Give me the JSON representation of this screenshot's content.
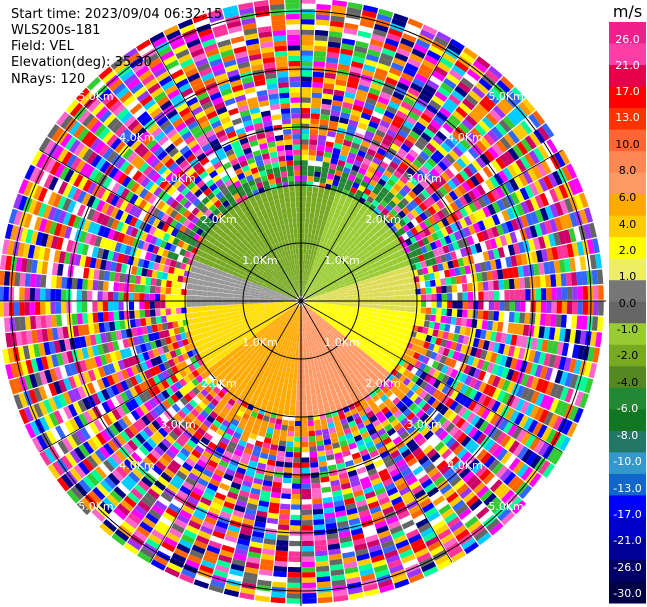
{
  "info": {
    "start_time": "Start time: 2023/09/04 06:32:15",
    "instrument": "WLS200s-181",
    "field": "Field: VEL",
    "elevation": "Elevation(deg): 35.30",
    "nrays": "NRays: 120"
  },
  "colorbar": {
    "unit": "m/s",
    "ticks": [
      "26.0",
      "21.0",
      "17.0",
      "13.0",
      "10.0",
      "8.0",
      "6.0",
      "4.0",
      "2.0",
      "1.0",
      "0.0",
      "-1.0",
      "-2.0",
      "-4.0",
      "-6.0",
      "-8.0",
      "-10.0",
      "-13.0",
      "-17.0",
      "-21.0",
      "-26.0",
      "-30.0"
    ],
    "colors": [
      "#f01f8c",
      "#ff3ea8",
      "#e6004c",
      "#ff0000",
      "#ff3300",
      "#ff6633",
      "#ff8855",
      "#ff9966",
      "#ffaa00",
      "#ffcc00",
      "#ffff00",
      "#eeee66",
      "#777777",
      "#666666",
      "#99cc33",
      "#77aa22",
      "#558822",
      "#228833",
      "#117722",
      "#227766",
      "#3399cc",
      "#1166cc",
      "#0000ff",
      "#0000cc",
      "#000099",
      "#000066",
      "#000044"
    ]
  },
  "chart_data": {
    "type": "heatmap",
    "projection": "polar PPI",
    "field": "VEL",
    "units": "m/s",
    "nrays": 120,
    "range_rings_km": [
      1.0,
      2.0,
      3.0,
      4.0,
      5.0
    ],
    "ring_labels": [
      "1.0Km",
      "2.0Km",
      "3.0Km",
      "4.0Km",
      "5.0Km"
    ],
    "value_range": [
      -30.0,
      26.0
    ],
    "description_values": {
      "north_sector_near": -6.0,
      "south_sector_near": 6.0,
      "east_sector_near": 2.0,
      "west_sector_near": -4.0,
      "far_range": "noise"
    }
  }
}
